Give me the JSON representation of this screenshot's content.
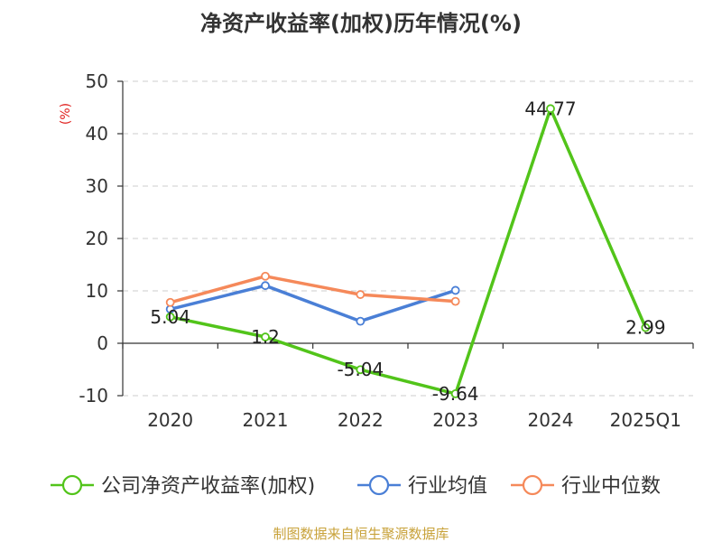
{
  "title": "净资产收益率(加权)历年情况(%)",
  "source": "制图数据来自恒生聚源数据库",
  "chart_data": {
    "type": "line",
    "title": "净资产收益率(加权)历年情况(%)",
    "ylabel": "(%)",
    "xlabel": "",
    "categories": [
      "2020",
      "2021",
      "2022",
      "2023",
      "2024",
      "2025Q1"
    ],
    "ylim": [
      -10,
      50
    ],
    "yticks": [
      -10,
      0,
      10,
      20,
      30,
      40,
      50
    ],
    "grid": true,
    "legend_position": "bottom",
    "series": [
      {
        "name": "公司净资产收益率(加权)",
        "color": "#52c41a",
        "values": [
          5.04,
          1.2,
          -5.04,
          -9.64,
          44.77,
          2.99
        ],
        "labels": [
          "5.04",
          "1.2",
          "-5.04",
          "-9.64",
          "44.77",
          "2.99"
        ]
      },
      {
        "name": "行业均值",
        "color": "#4a7fd6",
        "values": [
          6.5,
          11.0,
          4.2,
          10.1,
          null,
          null
        ]
      },
      {
        "name": "行业中位数",
        "color": "#f5895a",
        "values": [
          7.8,
          12.8,
          9.3,
          8.0,
          null,
          null
        ]
      }
    ]
  }
}
